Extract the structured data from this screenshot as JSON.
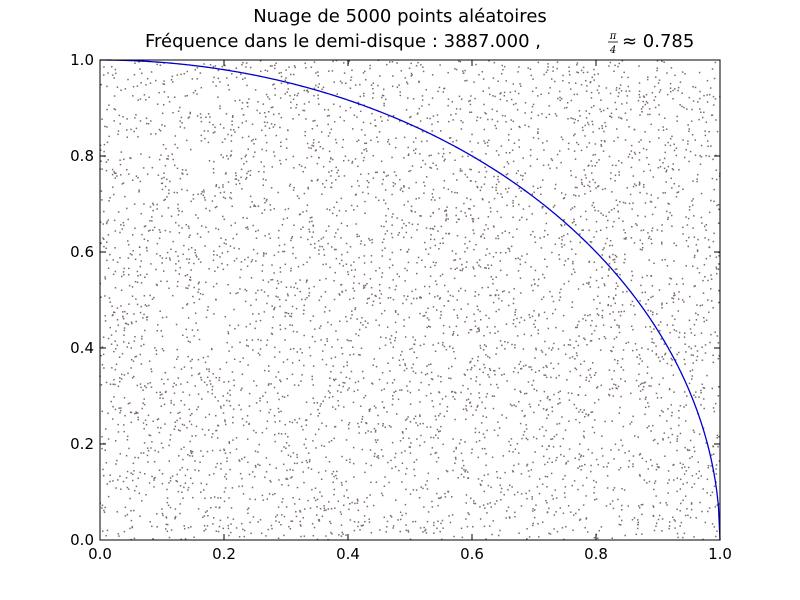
{
  "chart_data": {
    "type": "scatter",
    "title": "Nuage de 5000 points aléatoires",
    "subtitle": {
      "prefix": "Fréquence dans le demi-disque : 3887.000  ,",
      "frac_num": "π",
      "frac_den": "4",
      "suffix": "≈ 0.785"
    },
    "n_points": 5000,
    "in_quarter_disk": 3887,
    "xlim": [
      0.0,
      1.0
    ],
    "ylim": [
      0.0,
      1.0
    ],
    "xticks": [
      0.0,
      0.2,
      0.4,
      0.6,
      0.8,
      1.0
    ],
    "yticks": [
      0.0,
      0.2,
      0.4,
      0.6,
      0.8,
      1.0
    ],
    "xtick_labels": [
      "0.0",
      "0.2",
      "0.4",
      "0.6",
      "0.8",
      "1.0"
    ],
    "ytick_labels": [
      "0.0",
      "0.2",
      "0.4",
      "0.6",
      "0.8",
      "1.0"
    ],
    "grid": false,
    "series": [
      {
        "kind": "scatter",
        "distribution": "uniform on [0,1]×[0,1]",
        "count": 5000,
        "color": "#7a6a6a"
      },
      {
        "kind": "line",
        "curve": "x² + y² = 1",
        "x_range": [
          0.0,
          1.0
        ],
        "color": "#0000cc"
      }
    ]
  }
}
